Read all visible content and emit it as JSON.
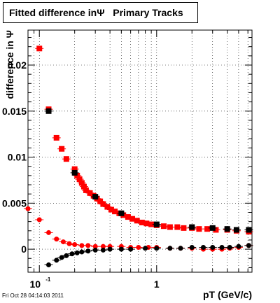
{
  "title": "Fitted difference inΨ   Primary Tracks",
  "footer": "Fri Oct 28 04:14:03 2011",
  "chart_data": {
    "type": "scatter",
    "title": "Fitted difference inΨ   Primary Tracks",
    "xlabel": "pT (GeV/c)",
    "ylabel": "difference in Ψ",
    "x_scale": "log",
    "xlim": [
      0.08,
      6.5
    ],
    "ylim": [
      -0.0025,
      0.0238
    ],
    "grid": true,
    "x_tick_labels": [
      {
        "value": 0.1,
        "base": "10",
        "exp": "-1"
      },
      {
        "value": 1,
        "base": "1",
        "exp": ""
      }
    ],
    "y_tick_labels": [
      {
        "value": 0,
        "label": "0"
      },
      {
        "value": 0.005,
        "label": "0.005"
      },
      {
        "value": 0.01,
        "label": "0.01"
      },
      {
        "value": 0.015,
        "label": "0.015"
      },
      {
        "value": 0.02,
        "label": "0.02"
      }
    ],
    "colors": {
      "red": "#ff0000",
      "black": "#000000"
    },
    "series": [
      {
        "marker": "square",
        "color": "#ff0000",
        "points": [
          [
            0.1,
            0.0218
          ],
          [
            0.12,
            0.0152
          ],
          [
            0.14,
            0.0121
          ],
          [
            0.155,
            0.0109
          ],
          [
            0.17,
            0.0098
          ],
          [
            0.2,
            0.0087
          ],
          [
            0.21,
            0.008
          ],
          [
            0.22,
            0.0076
          ],
          [
            0.23,
            0.0072
          ],
          [
            0.24,
            0.0068
          ],
          [
            0.25,
            0.0064
          ],
          [
            0.27,
            0.0061
          ],
          [
            0.29,
            0.0058
          ],
          [
            0.31,
            0.0055
          ],
          [
            0.33,
            0.0052
          ],
          [
            0.35,
            0.0049
          ],
          [
            0.38,
            0.0046
          ],
          [
            0.41,
            0.0043
          ],
          [
            0.44,
            0.0041
          ],
          [
            0.48,
            0.0039
          ],
          [
            0.52,
            0.0037
          ],
          [
            0.57,
            0.0035
          ],
          [
            0.62,
            0.0033
          ],
          [
            0.68,
            0.0031
          ],
          [
            0.75,
            0.0029
          ],
          [
            0.82,
            0.0028
          ],
          [
            0.9,
            0.0027
          ],
          [
            1.0,
            0.0026
          ],
          [
            1.15,
            0.0025
          ],
          [
            1.3,
            0.0024
          ],
          [
            1.5,
            0.0024
          ],
          [
            1.7,
            0.0023
          ],
          [
            2.0,
            0.0023
          ],
          [
            2.3,
            0.0022
          ],
          [
            2.7,
            0.0022
          ],
          [
            3.2,
            0.0021
          ],
          [
            4.0,
            0.0021
          ],
          [
            4.8,
            0.002
          ],
          [
            6.1,
            0.0019
          ]
        ]
      },
      {
        "marker": "square",
        "color": "#000000",
        "points": [
          [
            0.12,
            0.015
          ],
          [
            0.2,
            0.0083
          ],
          [
            0.3,
            0.0057
          ],
          [
            0.5,
            0.0039
          ],
          [
            1.0,
            0.0027
          ],
          [
            2.0,
            0.0024
          ],
          [
            3.0,
            0.0023
          ],
          [
            4.0,
            0.0022
          ],
          [
            4.8,
            0.0021
          ],
          [
            6.1,
            0.0021
          ]
        ]
      },
      {
        "marker": "circle",
        "color": "#ff0000",
        "points": [
          [
            0.08,
            0.0044
          ],
          [
            0.1,
            0.0032
          ],
          [
            0.12,
            0.0018
          ],
          [
            0.14,
            0.0011
          ],
          [
            0.16,
            0.0008
          ],
          [
            0.18,
            0.0006
          ],
          [
            0.2,
            0.0005
          ],
          [
            0.23,
            0.0004
          ],
          [
            0.26,
            0.0004
          ],
          [
            0.3,
            0.0003
          ],
          [
            0.35,
            0.0003
          ],
          [
            0.4,
            0.0003
          ],
          [
            0.5,
            0.0003
          ],
          [
            0.6,
            0.0002
          ],
          [
            0.7,
            0.0002
          ],
          [
            0.85,
            0.0002
          ],
          [
            1.0,
            0.0002
          ],
          [
            1.3,
            0.0001
          ],
          [
            1.6,
            0.0001
          ],
          [
            2.0,
            0.0001
          ],
          [
            2.5,
            0.0
          ],
          [
            3.0,
            0.0
          ],
          [
            3.6,
            0.0
          ],
          [
            4.2,
            0.0001
          ],
          [
            5.0,
            0.0002
          ],
          [
            6.1,
            0.0004
          ]
        ]
      },
      {
        "marker": "circle",
        "color": "#000000",
        "points": [
          [
            0.12,
            -0.0017
          ],
          [
            0.14,
            -0.0012
          ],
          [
            0.155,
            -0.0009
          ],
          [
            0.17,
            -0.0007
          ],
          [
            0.19,
            -0.0005
          ],
          [
            0.21,
            -0.0004
          ],
          [
            0.23,
            -0.0003
          ],
          [
            0.26,
            -0.0002
          ],
          [
            0.3,
            -0.0001
          ],
          [
            0.35,
            -0.0001
          ],
          [
            0.4,
            0.0
          ],
          [
            0.5,
            0.0
          ],
          [
            0.6,
            0.0
          ],
          [
            0.8,
            0.0001
          ],
          [
            1.0,
            0.0001
          ],
          [
            1.3,
            0.0001
          ],
          [
            1.6,
            0.0001
          ],
          [
            2.0,
            0.0002
          ],
          [
            2.5,
            0.0002
          ],
          [
            3.0,
            0.0002
          ],
          [
            3.6,
            0.0002
          ],
          [
            4.2,
            0.0002
          ],
          [
            5.0,
            0.0003
          ],
          [
            6.1,
            0.0004
          ]
        ]
      }
    ]
  }
}
